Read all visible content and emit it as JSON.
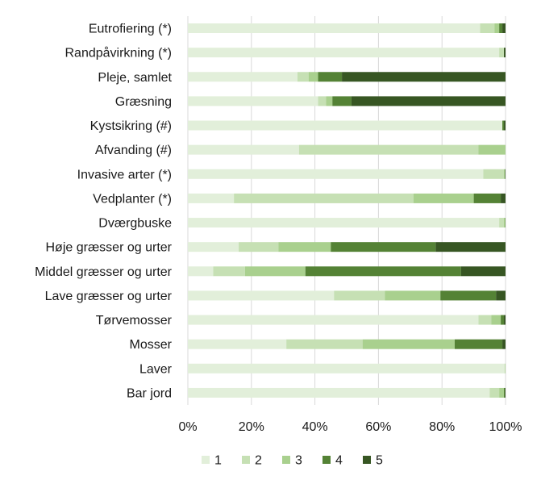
{
  "chart_data": {
    "type": "bar",
    "orientation": "horizontal",
    "stacked": "percent",
    "categories": [
      "Eutrofiering (*)",
      "Randpåvirkning (*)",
      "Pleje, samlet",
      "Græsning",
      "Kystsikring (#)",
      "Afvanding (#)",
      "Invasive arter (*)",
      "Vedplanter (*)",
      "Dværgbuske",
      "Høje græsser og urter",
      "Middel græsser og urter",
      "Lave græsser og urter",
      "Tørvemosser",
      "Mosser",
      "Laver ",
      "Bar jord"
    ],
    "series": [
      {
        "name": "1",
        "color": "#e2efda",
        "values": [
          92,
          98,
          34.5,
          41,
          99,
          35,
          93,
          14.5,
          98,
          16,
          8,
          46,
          91.5,
          31,
          99.7,
          95
        ]
      },
      {
        "name": "2",
        "color": "#c6e0b4",
        "values": [
          4.5,
          1.5,
          3.5,
          2.5,
          0,
          56.5,
          6.5,
          56.5,
          1.5,
          12.5,
          10,
          16,
          4,
          24,
          0.2,
          3
        ]
      },
      {
        "name": "3",
        "color": "#a9d08e",
        "values": [
          1.5,
          0,
          3,
          2,
          0,
          8.5,
          0.3,
          19,
          0.4,
          16.5,
          19,
          17.5,
          3,
          29,
          0.1,
          1.5
        ]
      },
      {
        "name": "4",
        "color": "#548235",
        "values": [
          1,
          0,
          7.5,
          6,
          0.5,
          0,
          0.1,
          8.5,
          0.1,
          33,
          49,
          17.5,
          1,
          15,
          0,
          0.3
        ]
      },
      {
        "name": "5",
        "color": "#375623",
        "values": [
          1,
          0.5,
          51.5,
          48.5,
          0.5,
          0,
          0.1,
          1.5,
          0,
          22,
          14,
          3,
          0.5,
          1,
          0,
          0.2
        ]
      }
    ],
    "xaxis": {
      "ticks": [
        "0%",
        "20%",
        "40%",
        "60%",
        "80%",
        "100%"
      ],
      "range": [
        0,
        100
      ]
    },
    "grid": true,
    "legend_position": "bottom",
    "title": "",
    "xlabel": "",
    "ylabel": ""
  }
}
